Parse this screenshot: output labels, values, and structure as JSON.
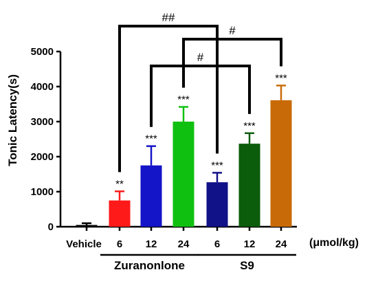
{
  "chart_data": {
    "type": "bar",
    "ylabel": "Tonic Latency(s)",
    "ylim": [
      0,
      5000
    ],
    "yticks": [
      0,
      1000,
      2000,
      3000,
      4000,
      5000
    ],
    "categories": [
      "Vehicle",
      "6",
      "12",
      "24",
      "6",
      "12",
      "24"
    ],
    "unit_label": "(μmol/kg)",
    "values": [
      50,
      750,
      1750,
      3000,
      1270,
      2370,
      3610
    ],
    "errors": [
      50,
      260,
      550,
      420,
      270,
      300,
      420
    ],
    "colors": [
      "#000000",
      "#ff1a1a",
      "#1414c8",
      "#10c010",
      "#111188",
      "#0b5c0b",
      "#c96a08"
    ],
    "significance_vs_vehicle": [
      "",
      "**",
      "***",
      "***",
      "***",
      "***",
      "***"
    ],
    "groups": [
      {
        "label": "Zuranonlone",
        "bars": [
          1,
          3
        ]
      },
      {
        "label": "S9",
        "bars": [
          4,
          6
        ]
      }
    ],
    "comparisons": [
      {
        "label": "##",
        "bars": [
          1,
          4
        ]
      },
      {
        "label": "#",
        "bars": [
          3,
          6
        ]
      },
      {
        "label": "#",
        "bars": [
          2,
          5
        ]
      }
    ],
    "grid": false,
    "legend": "none"
  }
}
